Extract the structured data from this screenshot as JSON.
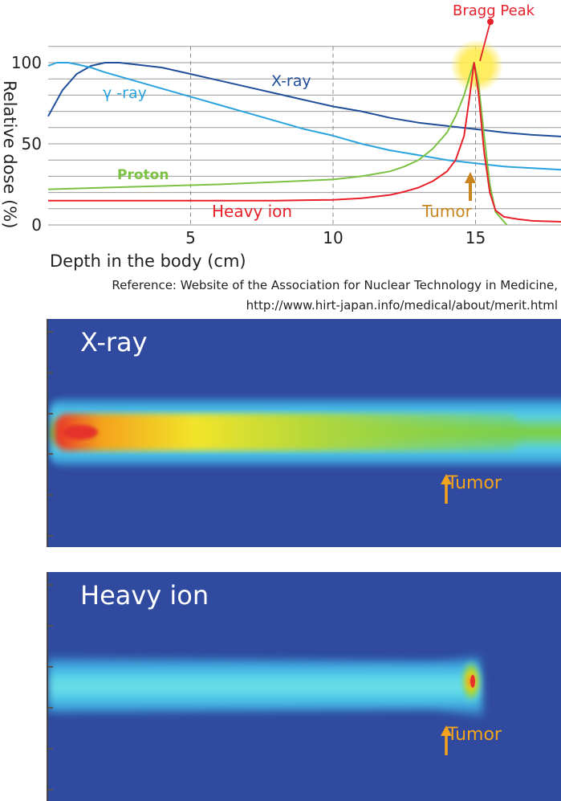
{
  "chart_data": {
    "type": "line",
    "xlabel": "Depth in the body (cm)",
    "ylabel": "Relative dose (%)",
    "xlim": [
      0,
      18
    ],
    "ylim": [
      0,
      110
    ],
    "x_ticks": [
      "5",
      "10",
      "15"
    ],
    "y_ticks": [
      "0",
      "50",
      "100"
    ],
    "grid": "horizontal lines every 10%, dashed verticals at 5, 10, 15",
    "series": [
      {
        "name": "X-ray",
        "color": "#1f4e9a",
        "x": [
          0,
          0.5,
          1,
          1.5,
          2,
          2.5,
          3,
          4,
          5,
          6,
          7,
          8,
          9,
          10,
          11,
          12,
          13,
          14,
          15,
          16,
          17,
          18
        ],
        "y": [
          67,
          83,
          93,
          98,
          100,
          100,
          99,
          97,
          93,
          89,
          85,
          81,
          77,
          73,
          70,
          66,
          63,
          61,
          59,
          57,
          55.5,
          54.5
        ]
      },
      {
        "name": "γ-ray",
        "color": "#29a3de",
        "x": [
          0,
          0.3,
          0.7,
          1,
          1.5,
          2,
          3,
          4,
          5,
          6,
          7,
          8,
          9,
          10,
          11,
          12,
          13,
          14,
          15,
          16,
          17,
          18
        ],
        "y": [
          98,
          100,
          100,
          99,
          97,
          94,
          89,
          84,
          79,
          74,
          69,
          64,
          59,
          55,
          50,
          46,
          43,
          40,
          38,
          36,
          35,
          34
        ]
      },
      {
        "name": "Proton",
        "color": "#7cc242",
        "x": [
          0,
          2,
          4,
          6,
          8,
          10,
          11,
          12,
          12.5,
          13,
          13.5,
          14,
          14.3,
          14.6,
          14.8,
          14.95,
          15.1,
          15.3,
          15.5,
          15.7,
          16,
          16.1
        ],
        "y": [
          22,
          23,
          24,
          25,
          26.5,
          28,
          30,
          33,
          36,
          40,
          47,
          57,
          67,
          80,
          92,
          100,
          88,
          55,
          25,
          8,
          2,
          0
        ]
      },
      {
        "name": "Heavy ion",
        "color": "#e8202a",
        "x": [
          0,
          2,
          4,
          6,
          8,
          10,
          11,
          12,
          12.5,
          13,
          13.5,
          14,
          14.3,
          14.6,
          14.8,
          14.95,
          15.1,
          15.3,
          15.5,
          15.7,
          16,
          16.5,
          17,
          18
        ],
        "y": [
          15,
          15,
          15,
          15,
          15,
          15.5,
          16.5,
          18.5,
          20.5,
          23,
          27,
          33,
          40,
          55,
          80,
          100,
          82,
          45,
          20,
          9,
          5,
          3.5,
          2.5,
          2
        ]
      }
    ],
    "annotations": {
      "bragg_peak": "Bragg Peak",
      "bragg_peak_point": [
        15,
        100
      ],
      "tumor": "Tumor",
      "tumor_depth": 15
    }
  },
  "chart_labels": {
    "xlabel": "Depth in the body (cm)",
    "ylabel": "Relative dose (%)",
    "series_xray": "X-ray",
    "series_gamma": "γ -ray",
    "series_proton": "Proton",
    "series_heavy": "Heavy ion",
    "bragg_peak": "Bragg Peak",
    "tumor": "Tumor"
  },
  "caption": {
    "line1": "Reference: Website of the Association for Nuclear Technology in Medicine,",
    "line2": "http://www.hirt-japan.info/medical/about/merit.html"
  },
  "panels": [
    {
      "title": "X-ray",
      "tumor_label": "Tumor"
    },
    {
      "title": "Heavy ion",
      "tumor_label": "Tumor"
    }
  ],
  "colors": {
    "panel_background": "#2f4a9e",
    "tumor_label": "#f4a41c"
  }
}
